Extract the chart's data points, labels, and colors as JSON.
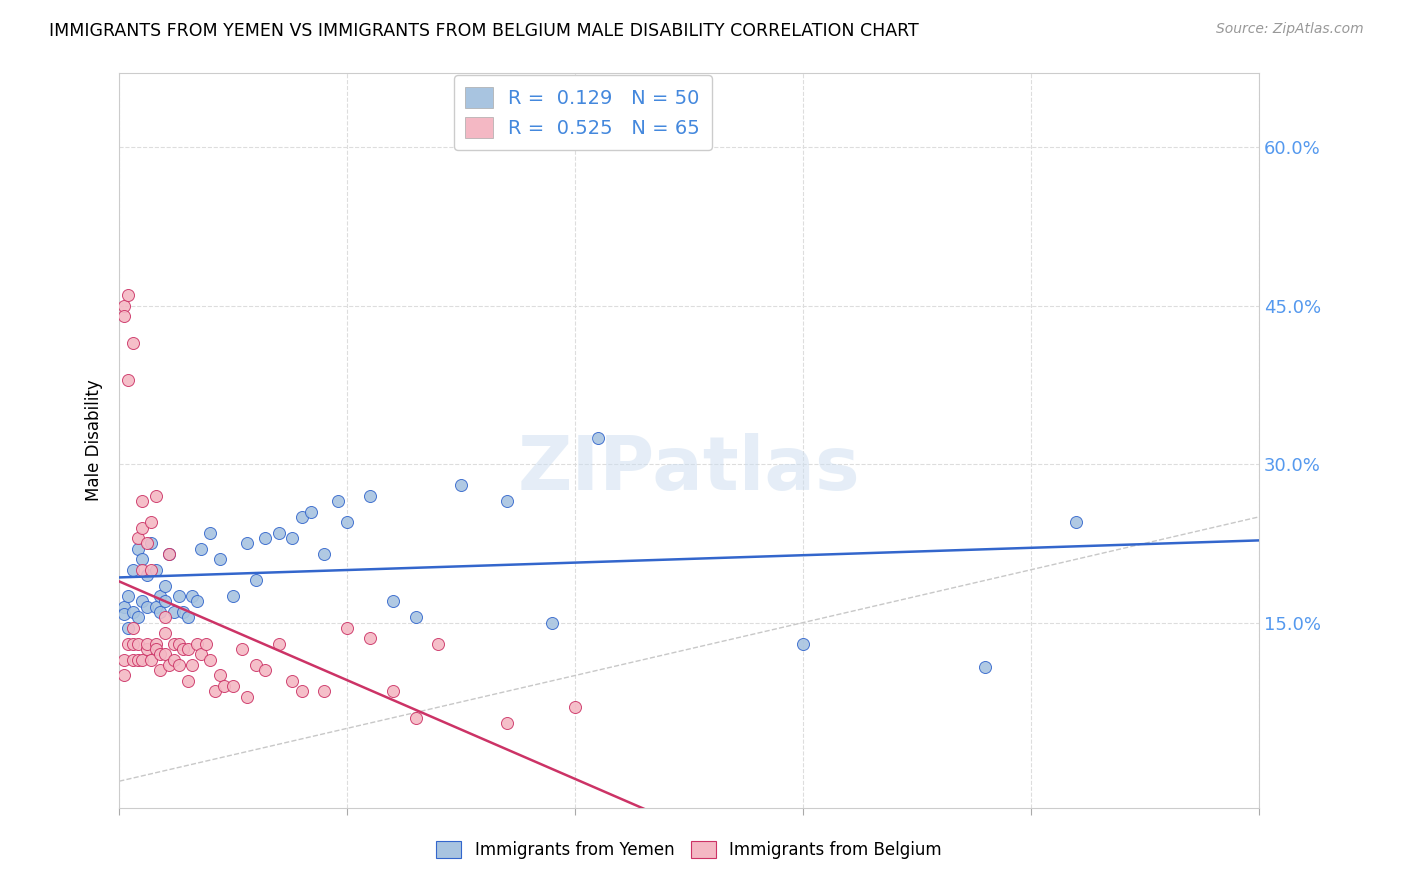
{
  "title": "IMMIGRANTS FROM YEMEN VS IMMIGRANTS FROM BELGIUM MALE DISABILITY CORRELATION CHART",
  "source": "Source: ZipAtlas.com",
  "ylabel": "Male Disability",
  "ytick_vals": [
    0.15,
    0.3,
    0.45,
    0.6
  ],
  "ytick_labels": [
    "15.0%",
    "30.0%",
    "45.0%",
    "60.0%"
  ],
  "xlim": [
    0.0,
    0.25
  ],
  "ylim": [
    -0.025,
    0.67
  ],
  "legend_label1": "Immigrants from Yemen",
  "legend_label2": "Immigrants from Belgium",
  "R1": "0.129",
  "N1": "50",
  "R2": "0.525",
  "N2": "65",
  "color_yemen": "#a8c4e0",
  "color_belgium": "#f4b8c4",
  "color_trend_yemen": "#3366cc",
  "color_trend_belgium": "#cc3366",
  "color_diagonal": "#c8c8c8",
  "background_color": "#ffffff",
  "watermark": "ZIPatlas",
  "yemen_x": [
    0.001,
    0.001,
    0.002,
    0.002,
    0.003,
    0.003,
    0.004,
    0.004,
    0.005,
    0.005,
    0.006,
    0.006,
    0.007,
    0.008,
    0.008,
    0.009,
    0.009,
    0.01,
    0.01,
    0.011,
    0.012,
    0.013,
    0.014,
    0.015,
    0.016,
    0.017,
    0.018,
    0.02,
    0.022,
    0.025,
    0.028,
    0.03,
    0.032,
    0.035,
    0.038,
    0.04,
    0.042,
    0.045,
    0.048,
    0.05,
    0.055,
    0.06,
    0.065,
    0.075,
    0.085,
    0.095,
    0.105,
    0.15,
    0.19,
    0.21
  ],
  "yemen_y": [
    0.165,
    0.158,
    0.145,
    0.175,
    0.16,
    0.2,
    0.155,
    0.22,
    0.21,
    0.17,
    0.195,
    0.165,
    0.225,
    0.2,
    0.165,
    0.175,
    0.16,
    0.185,
    0.17,
    0.215,
    0.16,
    0.175,
    0.16,
    0.155,
    0.175,
    0.17,
    0.22,
    0.235,
    0.21,
    0.175,
    0.225,
    0.19,
    0.23,
    0.235,
    0.23,
    0.25,
    0.255,
    0.215,
    0.265,
    0.245,
    0.27,
    0.17,
    0.155,
    0.28,
    0.265,
    0.15,
    0.325,
    0.13,
    0.108,
    0.245
  ],
  "belgium_x": [
    0.001,
    0.001,
    0.001,
    0.001,
    0.002,
    0.002,
    0.002,
    0.003,
    0.003,
    0.003,
    0.003,
    0.004,
    0.004,
    0.004,
    0.005,
    0.005,
    0.005,
    0.005,
    0.006,
    0.006,
    0.006,
    0.007,
    0.007,
    0.007,
    0.008,
    0.008,
    0.008,
    0.009,
    0.009,
    0.01,
    0.01,
    0.01,
    0.011,
    0.011,
    0.012,
    0.012,
    0.013,
    0.013,
    0.014,
    0.015,
    0.015,
    0.016,
    0.017,
    0.018,
    0.019,
    0.02,
    0.021,
    0.022,
    0.023,
    0.025,
    0.027,
    0.028,
    0.03,
    0.032,
    0.035,
    0.038,
    0.04,
    0.045,
    0.05,
    0.055,
    0.06,
    0.065,
    0.07,
    0.085,
    0.1
  ],
  "belgium_y": [
    0.1,
    0.115,
    0.45,
    0.44,
    0.38,
    0.46,
    0.13,
    0.415,
    0.13,
    0.145,
    0.115,
    0.13,
    0.23,
    0.115,
    0.115,
    0.2,
    0.24,
    0.265,
    0.125,
    0.13,
    0.225,
    0.2,
    0.115,
    0.245,
    0.27,
    0.13,
    0.125,
    0.105,
    0.12,
    0.12,
    0.14,
    0.155,
    0.215,
    0.11,
    0.13,
    0.115,
    0.11,
    0.13,
    0.125,
    0.095,
    0.125,
    0.11,
    0.13,
    0.12,
    0.13,
    0.115,
    0.085,
    0.1,
    0.09,
    0.09,
    0.125,
    0.08,
    0.11,
    0.105,
    0.13,
    0.095,
    0.085,
    0.085,
    0.145,
    0.135,
    0.085,
    0.06,
    0.13,
    0.055,
    0.07
  ]
}
